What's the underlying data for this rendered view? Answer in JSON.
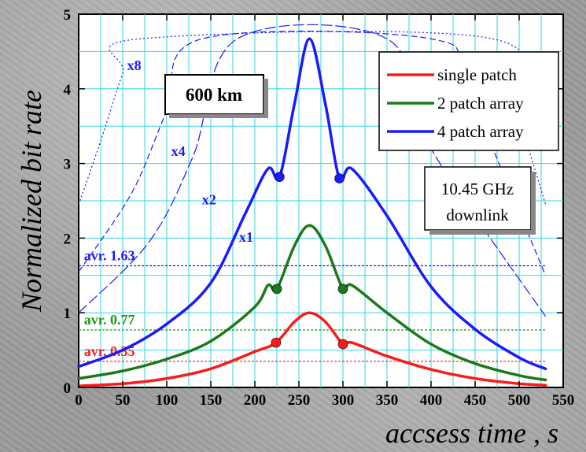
{
  "chart_data": {
    "type": "line",
    "xlabel": "accsess time , s",
    "ylabel": "Normalized bit rate",
    "xlim": [
      0,
      550
    ],
    "ylim": [
      0,
      5
    ],
    "xticks": [
      "0",
      "50",
      "100",
      "150",
      "200",
      "250",
      "300",
      "350",
      "400",
      "450",
      "500",
      "550"
    ],
    "yticks": [
      "0",
      "1",
      "2",
      "3",
      "4",
      "5"
    ],
    "grid": true,
    "legend_position": "top-right",
    "title_box": "600 km",
    "info_box": [
      "10.45 GHz",
      "downlink"
    ],
    "series": [
      {
        "name": "single patch",
        "color": "#ff1a1a",
        "x": [
          0,
          50,
          100,
          150,
          200,
          224,
          245,
          262,
          280,
          300,
          310,
          350,
          400,
          450,
          500,
          530
        ],
        "y": [
          0.02,
          0.05,
          0.12,
          0.25,
          0.48,
          0.6,
          0.88,
          1.0,
          0.88,
          0.58,
          0.6,
          0.42,
          0.24,
          0.12,
          0.05,
          0.03
        ],
        "markers": [
          [
            224,
            0.6
          ],
          [
            300,
            0.58
          ]
        ]
      },
      {
        "name": "2 patch array",
        "color": "#1a7a1a",
        "x": [
          0,
          50,
          100,
          150,
          200,
          215,
          225,
          245,
          262,
          280,
          300,
          310,
          350,
          400,
          450,
          500,
          530
        ],
        "y": [
          0.12,
          0.22,
          0.38,
          0.62,
          1.08,
          1.37,
          1.32,
          1.9,
          2.17,
          1.9,
          1.32,
          1.37,
          1.0,
          0.58,
          0.32,
          0.16,
          0.1
        ],
        "markers": [
          [
            225,
            1.32
          ],
          [
            300,
            1.32
          ]
        ]
      },
      {
        "name": "4 patch array",
        "color": "#1a1aff",
        "x": [
          0,
          50,
          100,
          150,
          190,
          215,
          228,
          245,
          262,
          280,
          296,
          310,
          350,
          400,
          450,
          500,
          530
        ],
        "y": [
          0.28,
          0.5,
          0.85,
          1.4,
          2.35,
          2.93,
          2.82,
          3.8,
          4.67,
          3.8,
          2.8,
          2.93,
          2.3,
          1.35,
          0.78,
          0.4,
          0.25
        ],
        "markers": [
          [
            228,
            2.82
          ],
          [
            296,
            2.8
          ]
        ]
      }
    ],
    "upper_bound": {
      "color": "#1a1aff",
      "plateau": 4.67,
      "curves": [
        {
          "label": "x8",
          "x": [
            0,
            25,
            50,
            70,
            470,
            500,
            530
          ],
          "y": [
            2.45,
            3.3,
            4.2,
            4.67,
            4.67,
            3.6,
            2.45
          ]
        },
        {
          "label": "x4",
          "x": [
            0,
            60,
            100,
            140,
            400,
            440,
            530
          ],
          "y": [
            1.55,
            2.6,
            3.7,
            4.67,
            4.67,
            4.0,
            1.5
          ]
        },
        {
          "label": "x2",
          "x": [
            0,
            80,
            130,
            180,
            350,
            400,
            530
          ],
          "y": [
            1.0,
            1.95,
            3.1,
            4.67,
            4.67,
            3.2,
            0.95
          ]
        },
        {
          "label": "x1"
        }
      ]
    },
    "averages": [
      {
        "label": "avr. 1.63",
        "value": 1.63,
        "color": "#1a1aff"
      },
      {
        "label": "avr. 0.77",
        "value": 0.77,
        "color": "#1a9a1a"
      },
      {
        "label": "avr. 0.35",
        "value": 0.35,
        "color": "#ff1a1a"
      }
    ]
  }
}
